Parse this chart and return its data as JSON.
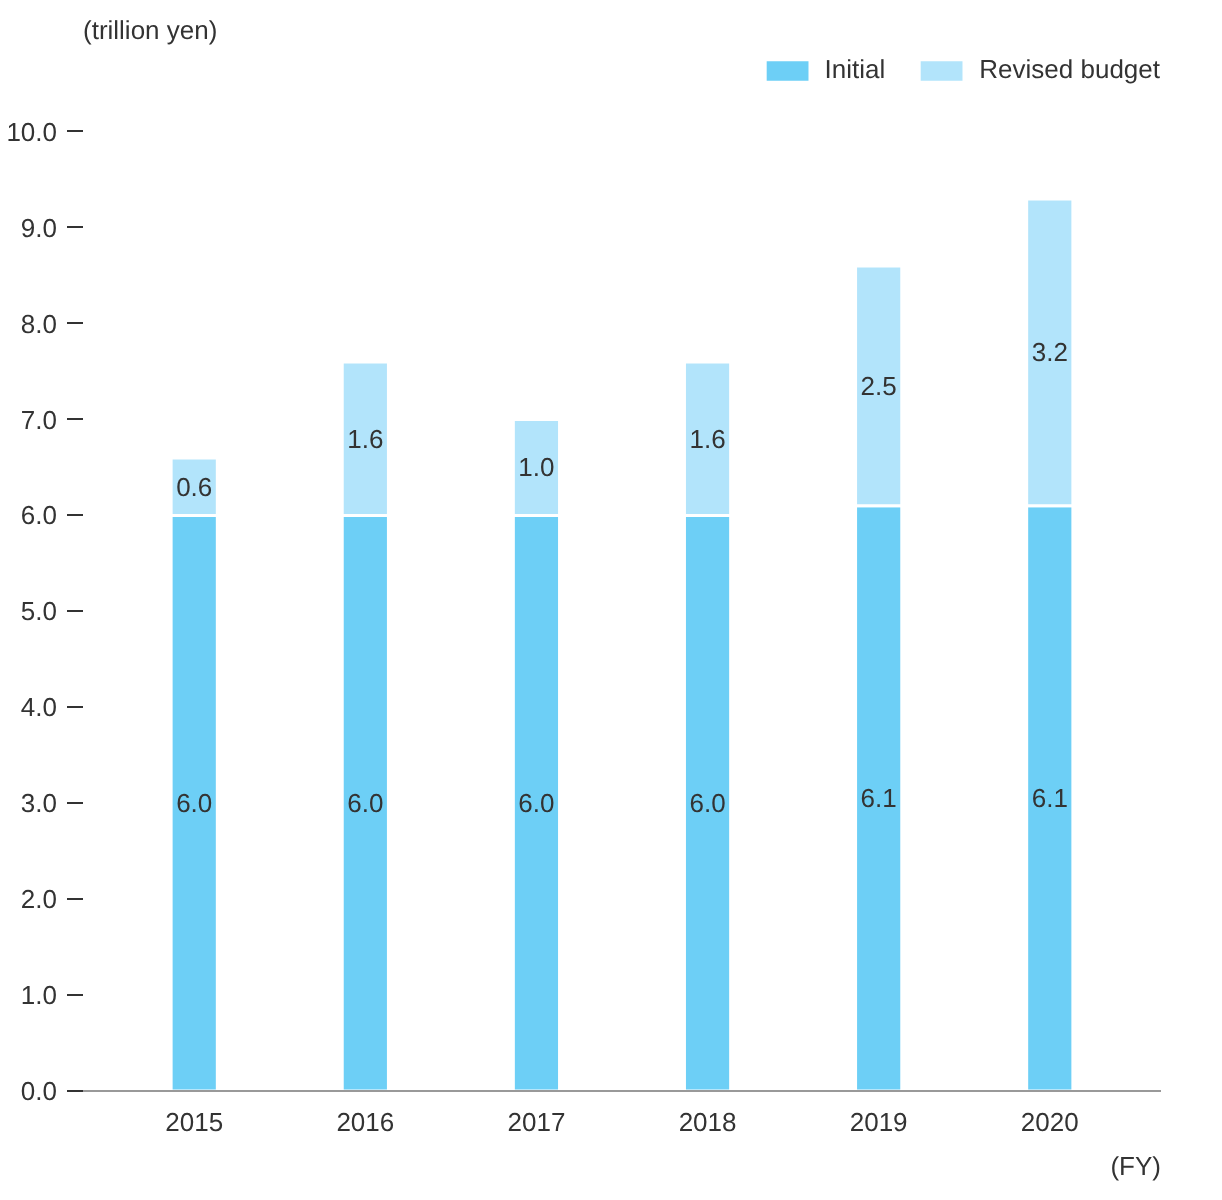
{
  "chart_data": {
    "type": "bar",
    "stacked": true,
    "annotations": [
      "(trillion yen)"
    ],
    "xlabel": "(FY)",
    "categories": [
      "2015",
      "2016",
      "2017",
      "2018",
      "2019",
      "2020"
    ],
    "series": [
      {
        "name": "Initial",
        "color": "#6dcff6",
        "values": [
          6.0,
          6.0,
          6.0,
          6.0,
          6.1,
          6.1
        ],
        "value_labels": [
          "6.0",
          "6.0",
          "6.0",
          "6.0",
          "6.1",
          "6.1"
        ]
      },
      {
        "name": "Revised budget",
        "color": "#b2e4fb",
        "values": [
          0.6,
          1.6,
          1.0,
          1.6,
          2.5,
          3.2
        ],
        "value_labels": [
          "0.6",
          "1.6",
          "1.0",
          "1.6",
          "2.5",
          "3.2"
        ]
      }
    ],
    "ylim": [
      0,
      10.8
    ],
    "yticks": [
      {
        "value": 0,
        "label": "0.0"
      },
      {
        "value": 1,
        "label": "1.0"
      },
      {
        "value": 2,
        "label": "2.0"
      },
      {
        "value": 3,
        "label": "3.0"
      },
      {
        "value": 4,
        "label": "4.0"
      },
      {
        "value": 5,
        "label": "5.0"
      },
      {
        "value": 6,
        "label": "6.0"
      },
      {
        "value": 7,
        "label": "7.0"
      },
      {
        "value": 8,
        "label": "8.0"
      },
      {
        "value": 9,
        "label": "9.0"
      },
      {
        "value": 10,
        "label": "10.0"
      }
    ],
    "grid": false,
    "legend": "top right"
  }
}
